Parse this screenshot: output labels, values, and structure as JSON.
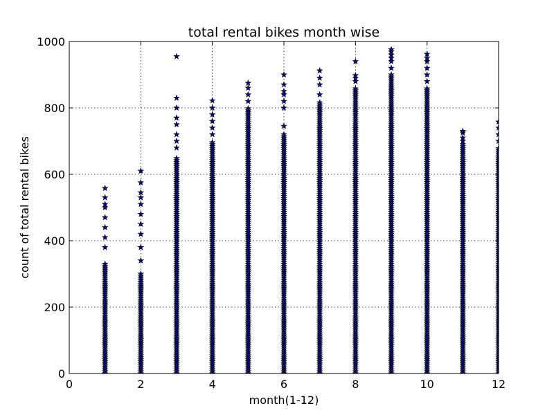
{
  "chart_data": {
    "type": "scatter",
    "title": "total rental bikes month wise",
    "xlabel": "month(1-12)",
    "ylabel": "count of total rental bikes",
    "xlim": [
      0,
      12
    ],
    "ylim": [
      0,
      1000
    ],
    "xticks": [
      "0",
      "2",
      "4",
      "6",
      "8",
      "10",
      "12"
    ],
    "yticks": [
      "0",
      "200",
      "400",
      "600",
      "800",
      "1000"
    ],
    "grid": true,
    "marker": "star",
    "marker_color": "#0a0a8c",
    "marker_edge_color": "#000000",
    "series": [
      {
        "month": 1,
        "dense_max": 330,
        "points": [
          380,
          410,
          440,
          470,
          500,
          510,
          530,
          558
        ]
      },
      {
        "month": 2,
        "dense_max": 300,
        "points": [
          340,
          380,
          420,
          450,
          480,
          510,
          530,
          545,
          575,
          610
        ]
      },
      {
        "month": 3,
        "dense_max": 650,
        "points": [
          680,
          700,
          720,
          750,
          770,
          800,
          830,
          955
        ]
      },
      {
        "month": 4,
        "dense_max": 700,
        "points": [
          720,
          740,
          760,
          780,
          800,
          822
        ]
      },
      {
        "month": 5,
        "dense_max": 800,
        "points": [
          820,
          840,
          860,
          875
        ]
      },
      {
        "month": 6,
        "dense_max": 720,
        "points": [
          745,
          800,
          820,
          840,
          850,
          870,
          900
        ]
      },
      {
        "month": 7,
        "dense_max": 820,
        "points": [
          840,
          870,
          890,
          912
        ]
      },
      {
        "month": 8,
        "dense_max": 860,
        "points": [
          880,
          890,
          898,
          940
        ]
      },
      {
        "month": 9,
        "dense_max": 900,
        "points": [
          920,
          940,
          950,
          960,
          970,
          976
        ]
      },
      {
        "month": 10,
        "dense_max": 860,
        "points": [
          880,
          900,
          920,
          940,
          950,
          962
        ]
      },
      {
        "month": 11,
        "dense_max": 690,
        "points": [
          700,
          710,
          725,
          730
        ]
      },
      {
        "month": 12,
        "dense_max": 680,
        "points": [
          700,
          720,
          740,
          758
        ]
      }
    ]
  }
}
